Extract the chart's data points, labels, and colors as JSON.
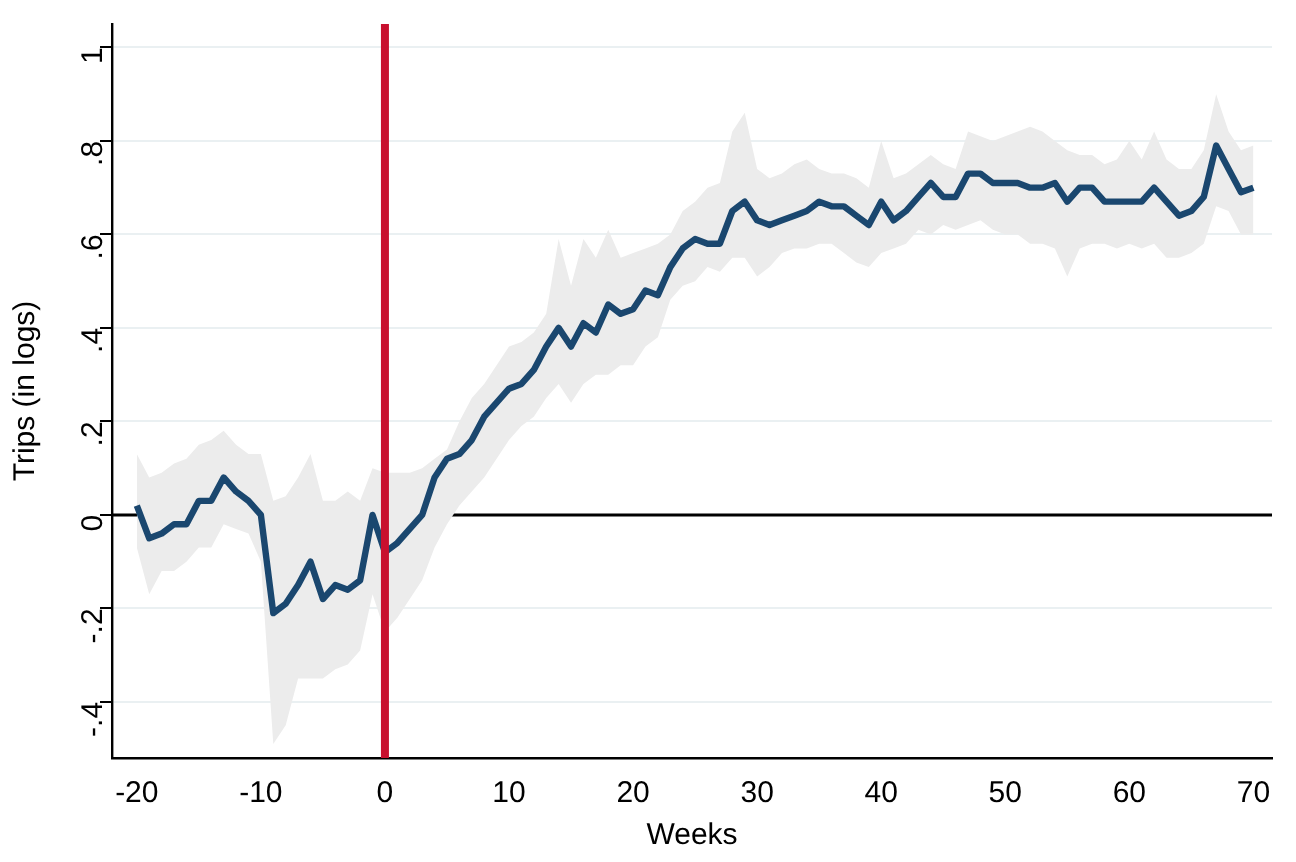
{
  "chart_data": {
    "type": "line",
    "xlabel": "Weeks",
    "ylabel": "Trips (in logs)",
    "x": [
      -20,
      -19,
      -18,
      -17,
      -16,
      -15,
      -14,
      -13,
      -12,
      -11,
      -10,
      -9,
      -8,
      -7,
      -6,
      -5,
      -4,
      -3,
      -2,
      -1,
      0,
      1,
      2,
      3,
      4,
      5,
      6,
      7,
      8,
      9,
      10,
      11,
      12,
      13,
      14,
      15,
      16,
      17,
      18,
      19,
      20,
      21,
      22,
      23,
      24,
      25,
      26,
      27,
      28,
      29,
      30,
      31,
      32,
      33,
      34,
      35,
      36,
      37,
      38,
      39,
      40,
      41,
      42,
      43,
      44,
      45,
      46,
      47,
      48,
      49,
      50,
      51,
      52,
      53,
      54,
      55,
      56,
      57,
      58,
      59,
      60,
      61,
      62,
      63,
      64,
      65,
      66,
      67,
      68,
      69,
      70
    ],
    "series": [
      {
        "color": "#1a476f",
        "values": [
          0.02,
          -0.05,
          -0.04,
          -0.02,
          -0.02,
          0.03,
          0.03,
          0.08,
          0.05,
          0.03,
          0.0,
          -0.21,
          -0.19,
          -0.15,
          -0.1,
          -0.18,
          -0.15,
          -0.16,
          -0.14,
          0.0,
          -0.08,
          -0.06,
          -0.03,
          0.0,
          0.08,
          0.12,
          0.13,
          0.16,
          0.21,
          0.24,
          0.27,
          0.28,
          0.31,
          0.36,
          0.4,
          0.36,
          0.41,
          0.39,
          0.45,
          0.43,
          0.44,
          0.48,
          0.47,
          0.53,
          0.57,
          0.59,
          0.58,
          0.58,
          0.65,
          0.67,
          0.63,
          0.62,
          0.63,
          0.64,
          0.65,
          0.67,
          0.66,
          0.66,
          0.64,
          0.62,
          0.67,
          0.63,
          0.65,
          0.68,
          0.71,
          0.68,
          0.68,
          0.73,
          0.73,
          0.71,
          0.71,
          0.71,
          0.7,
          0.7,
          0.71,
          0.67,
          0.7,
          0.7,
          0.67,
          0.67,
          0.67,
          0.67,
          0.7,
          0.67,
          0.64,
          0.65,
          0.68,
          0.79,
          0.74,
          0.69,
          0.7
        ],
        "lower": [
          -0.07,
          -0.17,
          -0.12,
          -0.12,
          -0.1,
          -0.07,
          -0.07,
          -0.02,
          -0.03,
          -0.04,
          -0.1,
          -0.49,
          -0.45,
          -0.35,
          -0.35,
          -0.35,
          -0.33,
          -0.32,
          -0.29,
          -0.17,
          -0.25,
          -0.22,
          -0.18,
          -0.14,
          -0.07,
          -0.02,
          0.02,
          0.05,
          0.08,
          0.12,
          0.16,
          0.19,
          0.21,
          0.25,
          0.28,
          0.24,
          0.28,
          0.3,
          0.3,
          0.32,
          0.32,
          0.36,
          0.38,
          0.46,
          0.49,
          0.5,
          0.53,
          0.52,
          0.55,
          0.55,
          0.51,
          0.53,
          0.56,
          0.57,
          0.57,
          0.58,
          0.58,
          0.56,
          0.54,
          0.53,
          0.56,
          0.57,
          0.58,
          0.61,
          0.6,
          0.62,
          0.61,
          0.62,
          0.63,
          0.61,
          0.6,
          0.6,
          0.58,
          0.58,
          0.57,
          0.51,
          0.57,
          0.58,
          0.58,
          0.57,
          0.58,
          0.57,
          0.58,
          0.55,
          0.55,
          0.56,
          0.58,
          0.66,
          0.65,
          0.6,
          0.6
        ],
        "upper": [
          0.13,
          0.08,
          0.09,
          0.11,
          0.12,
          0.15,
          0.16,
          0.18,
          0.15,
          0.13,
          0.13,
          0.03,
          0.04,
          0.08,
          0.13,
          0.03,
          0.03,
          0.05,
          0.03,
          0.1,
          0.09,
          0.09,
          0.09,
          0.1,
          0.12,
          0.14,
          0.2,
          0.25,
          0.28,
          0.32,
          0.36,
          0.37,
          0.39,
          0.43,
          0.59,
          0.49,
          0.59,
          0.55,
          0.61,
          0.55,
          0.56,
          0.57,
          0.58,
          0.6,
          0.65,
          0.67,
          0.7,
          0.71,
          0.82,
          0.86,
          0.74,
          0.72,
          0.73,
          0.75,
          0.76,
          0.74,
          0.73,
          0.73,
          0.72,
          0.7,
          0.8,
          0.72,
          0.73,
          0.75,
          0.77,
          0.75,
          0.74,
          0.82,
          0.81,
          0.8,
          0.81,
          0.82,
          0.83,
          0.82,
          0.8,
          0.78,
          0.77,
          0.77,
          0.75,
          0.76,
          0.8,
          0.76,
          0.82,
          0.76,
          0.74,
          0.74,
          0.78,
          0.9,
          0.82,
          0.78,
          0.79
        ]
      }
    ],
    "xlim": [
      -22,
      71.5
    ],
    "xticks": [
      -20,
      -10,
      0,
      10,
      20,
      30,
      40,
      50,
      60,
      70
    ],
    "ylim": [
      -0.52,
      1.05
    ],
    "yticks": [
      {
        "value": -0.4,
        "label": "-.4"
      },
      {
        "value": -0.2,
        "label": "-.2"
      },
      0,
      {
        "value": 0.2,
        "label": ".2"
      },
      {
        "value": 0.4,
        "label": ".4"
      },
      {
        "value": 0.6,
        "label": ".6"
      },
      {
        "value": 0.8,
        "label": ".8"
      },
      1
    ],
    "ref_lines": [
      {
        "axis": "y",
        "value": 0,
        "color": "#000000"
      },
      {
        "axis": "x",
        "value": 0,
        "color": "#c8102e"
      }
    ],
    "grid": "y",
    "legend": false,
    "marker": "none",
    "line_style": "solid"
  }
}
